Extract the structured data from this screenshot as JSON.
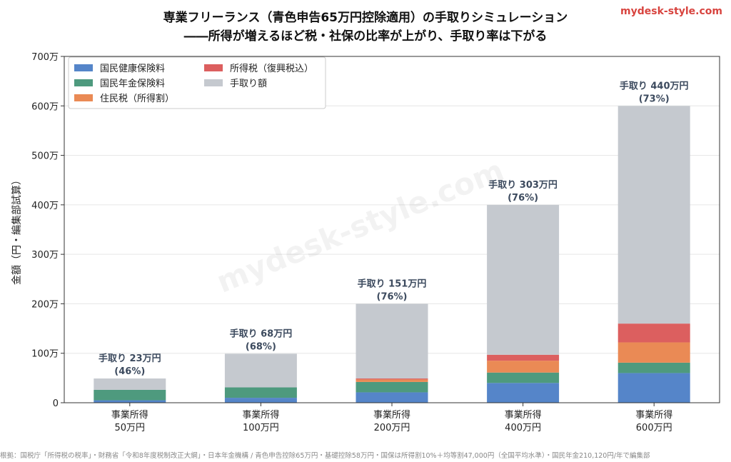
{
  "header": {
    "title_line1": "専業フリーランス（青色申告65万円控除適用）の手取りシミュレーション",
    "title_line2": "――所得が増えるほど税・社保の比率が上がり、手取り率は下がる",
    "site_mark": "mydesk-style.com"
  },
  "watermark": "mydesk-style.com",
  "source_note": "根拠：国税庁「所得税の税率」・財務省「令和8年度税制改正大綱」・日本年金機構 / 青色申告控除65万円・基礎控除58万円・国保は所得割10%＋均等割47,000円（全国平均水準）・国民年金210,120円/年で編集部",
  "colors": {
    "health": "#5585c9",
    "pension": "#4e9a7e",
    "resident": "#ea8a55",
    "income_tax": "#dc5f5f",
    "takehome": "#c5c9cf"
  },
  "chart_data": {
    "type": "bar",
    "stacked": true,
    "ylabel": "金額（円・編集部試算）",
    "ylim": [
      0,
      700
    ],
    "yticks": [
      "0",
      "100万",
      "200万",
      "300万",
      "400万",
      "500万",
      "600万",
      "700万"
    ],
    "grid": true,
    "legend_position": "top-left",
    "categories": [
      [
        "事業所得",
        "50万円"
      ],
      [
        "事業所得",
        "100万円"
      ],
      [
        "事業所得",
        "200万円"
      ],
      [
        "事業所得",
        "400万円"
      ],
      [
        "事業所得",
        "600万円"
      ]
    ],
    "series": [
      {
        "name": "国民健康保険料",
        "color_key": "health",
        "values": [
          5,
          10,
          21,
          40,
          60
        ]
      },
      {
        "name": "国民年金保険料",
        "color_key": "pension",
        "values": [
          21,
          21,
          21,
          21,
          21
        ]
      },
      {
        "name": "住民税（所得割）",
        "color_key": "resident",
        "values": [
          0,
          0,
          5,
          24,
          41
        ]
      },
      {
        "name": "所得税（復興税込）",
        "color_key": "income_tax",
        "values": [
          0,
          0,
          2,
          12,
          38
        ]
      },
      {
        "name": "手取り額",
        "color_key": "takehome",
        "values": [
          23,
          68,
          151,
          303,
          440
        ]
      }
    ],
    "bar_labels": [
      {
        "line1": "手取り 23万円",
        "line2": "(46%)"
      },
      {
        "line1": "手取り 68万円",
        "line2": "(68%)"
      },
      {
        "line1": "手取り 151万円",
        "line2": "(76%)"
      },
      {
        "line1": "手取り 303万円",
        "line2": "(76%)"
      },
      {
        "line1": "手取り 440万円",
        "line2": "(73%)"
      }
    ]
  }
}
